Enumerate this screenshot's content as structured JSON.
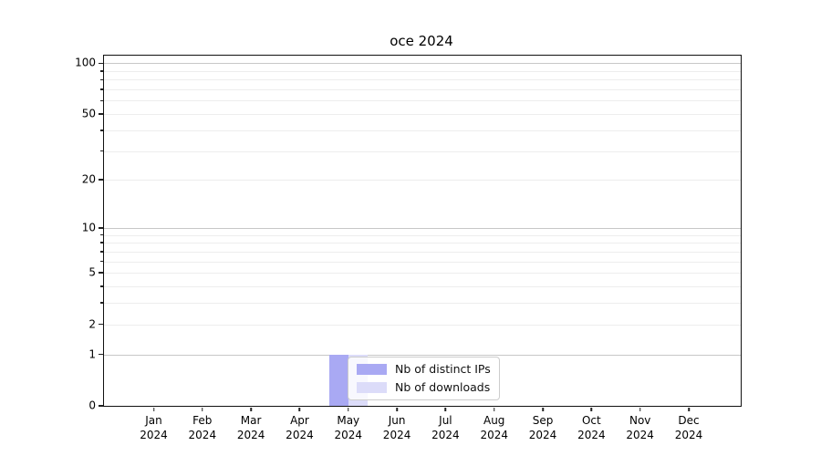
{
  "chart_data": {
    "type": "bar",
    "title": "oce 2024",
    "categories": [
      "Jan 2024",
      "Feb 2024",
      "Mar 2024",
      "Apr 2024",
      "May 2024",
      "Jun 2024",
      "Jul 2024",
      "Aug 2024",
      "Sep 2024",
      "Oct 2024",
      "Nov 2024",
      "Dec 2024"
    ],
    "series": [
      {
        "name": "Nb of distinct IPs",
        "color": "#a9a9f3",
        "values": [
          0,
          0,
          0,
          0,
          1,
          0,
          0,
          0,
          0,
          0,
          0,
          0
        ]
      },
      {
        "name": "Nb of downloads",
        "color": "#dcdcf9",
        "values": [
          0,
          0,
          0,
          0,
          1,
          0,
          0,
          0,
          0,
          0,
          0,
          0
        ]
      }
    ],
    "xlabel": "",
    "ylabel": "",
    "yscale": "log1p",
    "ylim": [
      0,
      111
    ],
    "yticks": [
      0,
      1,
      2,
      5,
      10,
      20,
      50,
      100
    ],
    "grid": "both",
    "legend_position": "inside-bottom-center"
  }
}
